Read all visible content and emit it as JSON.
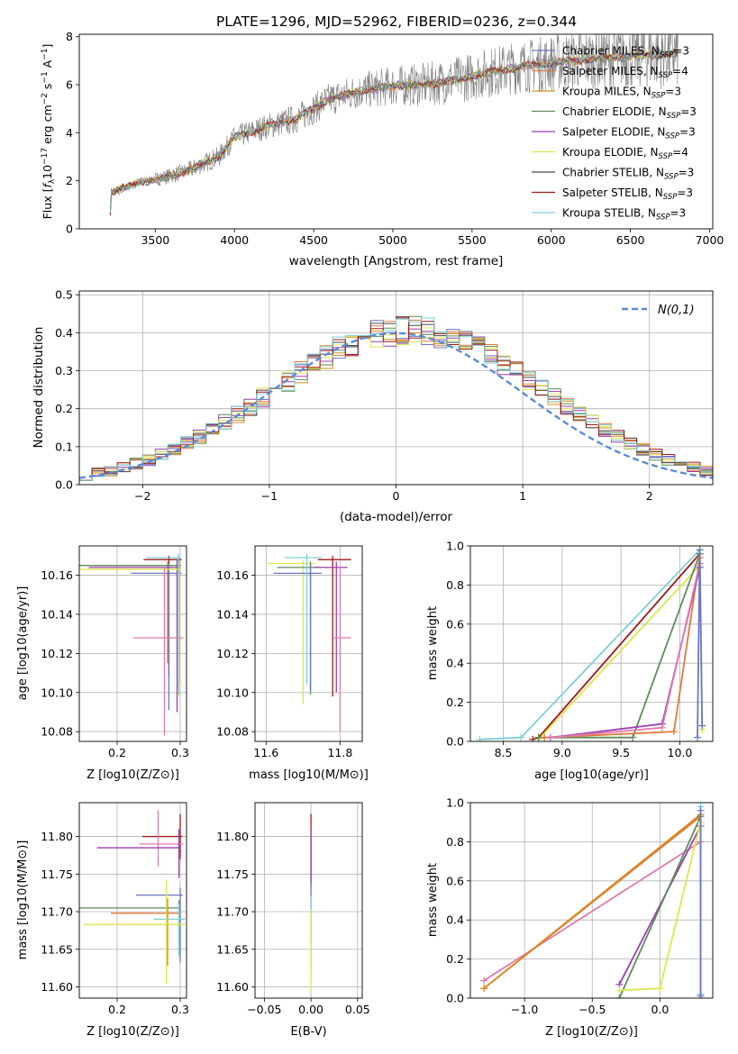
{
  "figure_title": "PLATE=1296, MJD=52962, FIBERID=0236, z=0.344",
  "colors": {
    "series": [
      "#6a77c4",
      "#e07a3a",
      "#d98b1f",
      "#5e8c5a",
      "#9b3fb0",
      "#dfe54a",
      "#4a4a4a",
      "#a01818",
      "#7fd0d8"
    ],
    "pink": "#e07ab0",
    "gaussian": "#5b8ad6",
    "grid": "#b0b0b0",
    "spectrum_gray": "#7f7f7f"
  },
  "chart_data": [
    {
      "id": "spectrum",
      "type": "line",
      "title": "PLATE=1296, MJD=52962, FIBERID=0236, z=0.344",
      "xlabel": "wavelength [Angstrom, rest frame]",
      "ylabel_parts": [
        "Flux [",
        "f",
        "λ",
        "10",
        "−17",
        " erg cm",
        "−2",
        " s",
        "−1",
        " A",
        "−1",
        "]"
      ],
      "xlim": [
        3020,
        7020
      ],
      "ylim": [
        0,
        8.1
      ],
      "xticks": [
        3500,
        4000,
        4500,
        5000,
        5500,
        6000,
        6500,
        7000
      ],
      "yticks": [
        0,
        2,
        4,
        6,
        8
      ],
      "grid": false,
      "legend_position": "top-right",
      "legend": [
        {
          "name": "Chabrier MILES",
          "nssp": "3"
        },
        {
          "name": "Salpeter MILES",
          "nssp": "4"
        },
        {
          "name": "Kroupa MILES",
          "nssp": "3"
        },
        {
          "name": "Chabrier ELODIE",
          "nssp": "3"
        },
        {
          "name": "Salpeter ELODIE",
          "nssp": "3"
        },
        {
          "name": "Kroupa ELODIE",
          "nssp": "4"
        },
        {
          "name": "Chabrier STELIB",
          "nssp": "3"
        },
        {
          "name": "Salpeter STELIB",
          "nssp": "3"
        },
        {
          "name": "Kroupa STELIB",
          "nssp": "3"
        }
      ],
      "legend_sub": "SSP",
      "continuum": {
        "x": [
          3210,
          3220,
          3400,
          3500,
          3700,
          3900,
          4000,
          4200,
          4400,
          4600,
          4800,
          5000,
          5200,
          5400,
          5600,
          5800,
          6000,
          6200,
          6400,
          6600,
          6800
        ],
        "y": [
          0,
          1.5,
          1.95,
          2.05,
          2.4,
          3.0,
          3.8,
          4.25,
          4.6,
          5.4,
          5.75,
          5.95,
          6.0,
          6.2,
          6.5,
          6.75,
          6.9,
          7.05,
          7.15,
          7.25,
          7.3
        ]
      }
    },
    {
      "id": "residuals",
      "type": "histogram",
      "xlabel": "(data-model)/error",
      "ylabel": "Normed distribution",
      "xlim": [
        -2.5,
        2.5
      ],
      "ylim": [
        0,
        0.51
      ],
      "xticks": [
        -2,
        -1,
        0,
        1,
        2
      ],
      "yticks": [
        0,
        0.1,
        0.2,
        0.3,
        0.4,
        0.5
      ],
      "grid": true,
      "legend_position": "top-right",
      "gaussian_label": "N(0,1)",
      "bin_width": 0.1,
      "n_histograms": 9
    },
    {
      "id": "age_vs_Z",
      "type": "errorbar",
      "xlabel": "Z [log10(Z/Z⊙)]",
      "ylabel": "age  [log10(age/yr)]",
      "xlim": [
        0.14,
        0.31
      ],
      "ylim": [
        10.075,
        10.175
      ],
      "xticks": [
        0.2,
        0.3
      ],
      "yticks": [
        10.08,
        10.1,
        10.12,
        10.14,
        10.16
      ],
      "grid": true,
      "points": [
        {
          "x": 0.282,
          "y": 10.168,
          "xerr": [
            0.04,
            0.02
          ],
          "yerr": [
            0.06,
            0.002
          ],
          "c": 7
        },
        {
          "x": 0.28,
          "y": 10.165,
          "xerr": [
            0.12,
            0.02
          ],
          "yerr": [
            0.05,
            0.002
          ],
          "c": 1
        },
        {
          "x": 0.298,
          "y": 10.165,
          "xerr": [
            0.16,
            0.003
          ],
          "yerr": [
            0.06,
            0.004
          ],
          "c": 3
        },
        {
          "x": 0.295,
          "y": 10.164,
          "xerr": [
            0.14,
            0.005
          ],
          "yerr": [
            0.074,
            0.004
          ],
          "c": 4
        },
        {
          "x": 0.282,
          "y": 10.161,
          "xerr": [
            0.06,
            0.02
          ],
          "yerr": [
            0.07,
            0.005
          ],
          "c": 0
        },
        {
          "x": 0.298,
          "y": 10.163,
          "xerr": [
            0.16,
            0.003
          ],
          "yerr": [
            0.065,
            0.003
          ],
          "c": 5
        },
        {
          "x": 0.297,
          "y": 10.169,
          "xerr": [
            0.05,
            0.004
          ],
          "yerr": [
            0.07,
            0.002
          ],
          "c": 8
        },
        {
          "x": 0.275,
          "y": 10.128,
          "xerr": [
            0.05,
            0.03
          ],
          "yerr": [
            0.05,
            0.036
          ],
          "c": "pink"
        }
      ]
    },
    {
      "id": "age_vs_mass",
      "type": "errorbar",
      "xlabel": "mass [log10(M/M⊙)]",
      "ylabel": "",
      "xlim": [
        11.57,
        11.86
      ],
      "ylim": [
        10.075,
        10.175
      ],
      "xticks": [
        11.6,
        11.8
      ],
      "yticks": [
        10.08,
        10.1,
        10.12,
        10.14,
        10.16
      ],
      "grid": true,
      "points": [
        {
          "x": 11.78,
          "y": 10.168,
          "xerr": [
            0.04,
            0.05
          ],
          "yerr": [
            0.07,
            0.002
          ],
          "c": 7
        },
        {
          "x": 11.7,
          "y": 10.166,
          "xerr": [
            0.1,
            0.03
          ],
          "yerr": [
            0.072,
            0.002
          ],
          "c": 5
        },
        {
          "x": 11.72,
          "y": 10.164,
          "xerr": [
            0.09,
            0.03
          ],
          "yerr": [
            0.065,
            0.003
          ],
          "c": 3
        },
        {
          "x": 11.72,
          "y": 10.161,
          "xerr": [
            0.1,
            0.03
          ],
          "yerr": [
            0.06,
            0.005
          ],
          "c": 0
        },
        {
          "x": 11.79,
          "y": 10.164,
          "xerr": [
            0.06,
            0.03
          ],
          "yerr": [
            0.064,
            0.003
          ],
          "c": 4
        },
        {
          "x": 11.71,
          "y": 10.169,
          "xerr": [
            0.06,
            0.04
          ],
          "yerr": [
            0.065,
            0.002
          ],
          "c": 8
        },
        {
          "x": 11.8,
          "y": 10.128,
          "xerr": [
            0.02,
            0.03
          ],
          "yerr": [
            0.048,
            0.036
          ],
          "c": "pink"
        }
      ]
    },
    {
      "id": "weight_vs_age",
      "type": "line",
      "xlabel": "age  [log10(age/yr)]",
      "ylabel": "mass weight",
      "xlim": [
        8.22,
        10.28
      ],
      "ylim": [
        0,
        1.0
      ],
      "xticks": [
        8.5,
        9.0,
        9.5,
        10.0
      ],
      "yticks": [
        0,
        0.2,
        0.4,
        0.6,
        0.8,
        1.0
      ],
      "grid": true,
      "series": [
        {
          "c": 8,
          "x": [
            8.3,
            8.65,
            10.17
          ],
          "y": [
            0.01,
            0.02,
            0.98
          ]
        },
        {
          "c": 7,
          "x": [
            8.75,
            8.8,
            10.17
          ],
          "y": [
            0.01,
            0.02,
            0.96
          ]
        },
        {
          "c": 5,
          "x": [
            8.8,
            10.17,
            10.19
          ],
          "y": [
            0.01,
            0.9,
            0.06
          ]
        },
        {
          "c": 3,
          "x": [
            8.8,
            9.6,
            10.17
          ],
          "y": [
            0.02,
            0.02,
            0.96
          ]
        },
        {
          "c": 1,
          "x": [
            8.85,
            9.95,
            10.17
          ],
          "y": [
            0.02,
            0.05,
            0.94
          ]
        },
        {
          "c": 4,
          "x": [
            8.9,
            9.85,
            10.17
          ],
          "y": [
            0.02,
            0.09,
            0.89
          ]
        },
        {
          "c": "pink",
          "x": [
            8.9,
            9.85,
            10.17
          ],
          "y": [
            0.02,
            0.07,
            0.91
          ]
        },
        {
          "c": 0,
          "x": [
            10.15,
            10.17,
            10.19
          ],
          "y": [
            0.02,
            0.98,
            0.08
          ]
        }
      ]
    },
    {
      "id": "mass_vs_Z",
      "type": "errorbar",
      "xlabel": "Z [log10(Z/Z⊙)]",
      "ylabel": "mass [log10(M/M⊙)]",
      "xlim": [
        0.14,
        0.31
      ],
      "ylim": [
        11.585,
        11.845
      ],
      "xticks": [
        0.2,
        0.3
      ],
      "yticks": [
        11.6,
        11.65,
        11.7,
        11.75,
        11.8
      ],
      "grid": true,
      "points": [
        {
          "x": 0.3,
          "y": 11.8,
          "xerr": [
            0.06,
            0.003
          ],
          "yerr": [
            0.03,
            0.03
          ],
          "c": 7
        },
        {
          "x": 0.265,
          "y": 11.79,
          "xerr": [
            0.03,
            0.04
          ],
          "yerr": [
            0.03,
            0.045
          ],
          "c": "pink"
        },
        {
          "x": 0.298,
          "y": 11.785,
          "xerr": [
            0.13,
            0.003
          ],
          "yerr": [
            0.04,
            0.025
          ],
          "c": 4
        },
        {
          "x": 0.3,
          "y": 11.722,
          "xerr": [
            0.07,
            0.004
          ],
          "yerr": [
            0.09,
            0.01
          ],
          "c": 0
        },
        {
          "x": 0.298,
          "y": 11.705,
          "xerr": [
            0.16,
            0.003
          ],
          "yerr": [
            0.06,
            0.01
          ],
          "c": 3
        },
        {
          "x": 0.28,
          "y": 11.698,
          "xerr": [
            0.09,
            0.02
          ],
          "yerr": [
            0.07,
            0.02
          ],
          "c": 1
        },
        {
          "x": 0.298,
          "y": 11.69,
          "xerr": [
            0.04,
            0.01
          ],
          "yerr": [
            0.05,
            0.02
          ],
          "c": 8
        },
        {
          "x": 0.278,
          "y": 11.683,
          "xerr": [
            0.13,
            0.03
          ],
          "yerr": [
            0.08,
            0.06
          ],
          "c": 5
        }
      ]
    },
    {
      "id": "mass_vs_ebv",
      "type": "errorbar",
      "xlabel": "E(B-V)",
      "ylabel": "",
      "xlim": [
        -0.06,
        0.055
      ],
      "ylim": [
        11.585,
        11.845
      ],
      "xticks": [
        -0.05,
        0.0,
        0.05
      ],
      "xtick_labels": [
        "−0.05",
        "0.00",
        "0.05"
      ],
      "yticks": [
        11.6,
        11.65,
        11.7,
        11.75,
        11.8
      ],
      "grid": true,
      "points": [
        {
          "x": 0,
          "y": 11.8,
          "xerr": [
            0,
            0
          ],
          "yerr": [
            0.06,
            0.03
          ],
          "c": 7
        },
        {
          "x": 0,
          "y": 11.79,
          "xerr": [
            0,
            0
          ],
          "yerr": [
            0.06,
            0.02
          ],
          "c": 4
        },
        {
          "x": 0,
          "y": 11.72,
          "xerr": [
            0,
            0
          ],
          "yerr": [
            0.06,
            0.02
          ],
          "c": 0
        },
        {
          "x": 0,
          "y": 11.7,
          "xerr": [
            0,
            0
          ],
          "yerr": [
            0.08,
            0.02
          ],
          "c": 8
        },
        {
          "x": 0,
          "y": 11.683,
          "xerr": [
            0,
            0
          ],
          "yerr": [
            0.09,
            0.02
          ],
          "c": 5
        }
      ]
    },
    {
      "id": "weight_vs_Z",
      "type": "line",
      "xlabel": "Z [log10(Z/Z⊙)]",
      "ylabel": "mass weight",
      "xlim": [
        -1.4,
        0.39
      ],
      "ylim": [
        0,
        1.0
      ],
      "xticks": [
        -1.0,
        -0.5,
        0.0
      ],
      "xtick_labels": [
        "−1.0",
        "−0.5",
        "0.0"
      ],
      "yticks": [
        0,
        0.2,
        0.4,
        0.6,
        0.8,
        1.0
      ],
      "grid": true,
      "series": [
        {
          "c": "pink",
          "x": [
            -1.3,
            0.3,
            0.3
          ],
          "y": [
            0.09,
            0.8,
            0.02
          ]
        },
        {
          "c": 1,
          "x": [
            -1.3,
            0.3,
            0.3
          ],
          "y": [
            0.05,
            0.93,
            0.02
          ]
        },
        {
          "c": 2,
          "x": [
            -1.3,
            0.3
          ],
          "y": [
            0.05,
            0.94
          ]
        },
        {
          "c": 4,
          "x": [
            -0.3,
            0.3,
            0.3
          ],
          "y": [
            0.07,
            0.88,
            0.02
          ]
        },
        {
          "c": 3,
          "x": [
            -0.3,
            0.3,
            0.3
          ],
          "y": [
            0.0,
            0.93,
            0.02
          ]
        },
        {
          "c": 5,
          "x": [
            -0.3,
            0.0,
            0.3
          ],
          "y": [
            0.04,
            0.05,
            0.9
          ]
        },
        {
          "c": 8,
          "x": [
            0.3,
            0.3
          ],
          "y": [
            0.02,
            0.98
          ]
        },
        {
          "c": 0,
          "x": [
            0.3,
            0.3
          ],
          "y": [
            0.01,
            0.96
          ]
        }
      ]
    }
  ]
}
